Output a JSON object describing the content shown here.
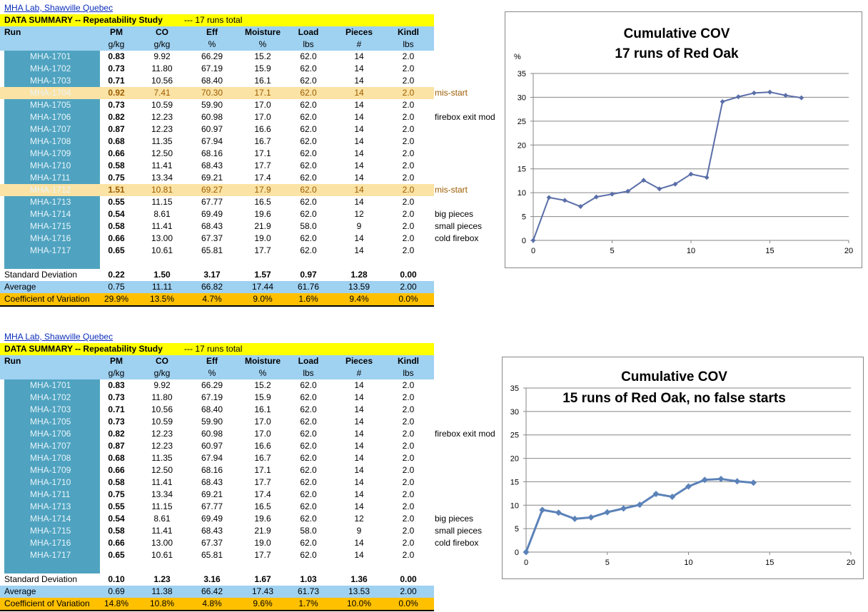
{
  "colors": {
    "title_bar": "#ffff00",
    "header": "#9fd1f1",
    "run_column": "#4fa3c0",
    "highlight": "#fbe3a5",
    "cov_row": "#ffc000",
    "series": "#5a6ea8",
    "series2": "#5b82b8"
  },
  "tables": [
    {
      "link": "MHA Lab, Shawville Quebec",
      "title": "DATA SUMMARY -- Repeatability Study",
      "title_note": "--- 17 runs total",
      "headers": [
        "Run",
        "PM",
        "CO",
        "Eff",
        "Moisture",
        "Load",
        "Pieces",
        "Kindl"
      ],
      "units": [
        "",
        "g/kg",
        "g/kg",
        "%",
        "%",
        "lbs",
        "#",
        "lbs"
      ],
      "rows": [
        {
          "run": "MHA-1701",
          "pm": "0.83",
          "co": "9.92",
          "eff": "66.29",
          "moist": "15.2",
          "load": "62.0",
          "pieces": "14",
          "kindl": "2.0",
          "note": ""
        },
        {
          "run": "MHA-1702",
          "pm": "0.73",
          "co": "11.80",
          "eff": "67.19",
          "moist": "15.9",
          "load": "62.0",
          "pieces": "14",
          "kindl": "2.0",
          "note": ""
        },
        {
          "run": "MHA-1703",
          "pm": "0.71",
          "co": "10.56",
          "eff": "68.40",
          "moist": "16.1",
          "load": "62.0",
          "pieces": "14",
          "kindl": "2.0",
          "note": ""
        },
        {
          "run": "MHA-1704",
          "pm": "0.92",
          "co": "7.41",
          "eff": "70.30",
          "moist": "17.1",
          "load": "62.0",
          "pieces": "14",
          "kindl": "2.0",
          "note": "mis-start",
          "hl": true
        },
        {
          "run": "MHA-1705",
          "pm": "0.73",
          "co": "10.59",
          "eff": "59.90",
          "moist": "17.0",
          "load": "62.0",
          "pieces": "14",
          "kindl": "2.0",
          "note": ""
        },
        {
          "run": "MHA-1706",
          "pm": "0.82",
          "co": "12.23",
          "eff": "60.98",
          "moist": "17.0",
          "load": "62.0",
          "pieces": "14",
          "kindl": "2.0",
          "note": "firebox exit mod"
        },
        {
          "run": "MHA-1707",
          "pm": "0.87",
          "co": "12.23",
          "eff": "60.97",
          "moist": "16.6",
          "load": "62.0",
          "pieces": "14",
          "kindl": "2.0",
          "note": ""
        },
        {
          "run": "MHA-1708",
          "pm": "0.68",
          "co": "11.35",
          "eff": "67.94",
          "moist": "16.7",
          "load": "62.0",
          "pieces": "14",
          "kindl": "2.0",
          "note": ""
        },
        {
          "run": "MHA-1709",
          "pm": "0.66",
          "co": "12.50",
          "eff": "68.16",
          "moist": "17.1",
          "load": "62.0",
          "pieces": "14",
          "kindl": "2.0",
          "note": ""
        },
        {
          "run": "MHA-1710",
          "pm": "0.58",
          "co": "11.41",
          "eff": "68.43",
          "moist": "17.7",
          "load": "62.0",
          "pieces": "14",
          "kindl": "2.0",
          "note": ""
        },
        {
          "run": "MHA-1711",
          "pm": "0.75",
          "co": "13.34",
          "eff": "69.21",
          "moist": "17.4",
          "load": "62.0",
          "pieces": "14",
          "kindl": "2.0",
          "note": ""
        },
        {
          "run": "MHA-1712",
          "pm": "1.51",
          "co": "10.81",
          "eff": "69.27",
          "moist": "17.9",
          "load": "62.0",
          "pieces": "14",
          "kindl": "2.0",
          "note": "mis-start",
          "hl": true
        },
        {
          "run": "MHA-1713",
          "pm": "0.55",
          "co": "11.15",
          "eff": "67.77",
          "moist": "16.5",
          "load": "62.0",
          "pieces": "14",
          "kindl": "2.0",
          "note": ""
        },
        {
          "run": "MHA-1714",
          "pm": "0.54",
          "co": "8.61",
          "eff": "69.49",
          "moist": "19.6",
          "load": "62.0",
          "pieces": "12",
          "kindl": "2.0",
          "note": "big pieces"
        },
        {
          "run": "MHA-1715",
          "pm": "0.58",
          "co": "11.41",
          "eff": "68.43",
          "moist": "21.9",
          "load": "58.0",
          "pieces": "9",
          "kindl": "2.0",
          "note": "small pieces"
        },
        {
          "run": "MHA-1716",
          "pm": "0.66",
          "co": "13.00",
          "eff": "67.37",
          "moist": "19.0",
          "load": "62.0",
          "pieces": "14",
          "kindl": "2.0",
          "note": "cold firebox"
        },
        {
          "run": "MHA-1717",
          "pm": "0.65",
          "co": "10.61",
          "eff": "65.81",
          "moist": "17.7",
          "load": "62.0",
          "pieces": "14",
          "kindl": "2.0",
          "note": ""
        }
      ],
      "stats": [
        {
          "label": "Standard Deviation",
          "values": [
            "0.22",
            "1.50",
            "3.17",
            "1.57",
            "0.97",
            "1.28",
            "0.00"
          ]
        },
        {
          "label": "Average",
          "values": [
            "0.75",
            "11.11",
            "66.82",
            "17.44",
            "61.76",
            "13.59",
            "2.00"
          ]
        },
        {
          "label": "Coefficient of Variation",
          "values": [
            "29.9%",
            "13.5%",
            "4.7%",
            "9.0%",
            "1.6%",
            "9.4%",
            "0.0%"
          ]
        }
      ]
    },
    {
      "link": "MHA Lab, Shawville Quebec",
      "title": "DATA SUMMARY -- Repeatability Study",
      "title_note": "--- 17 runs total",
      "headers": [
        "Run",
        "PM",
        "CO",
        "Eff",
        "Moisture",
        "Load",
        "Pieces",
        "Kindl"
      ],
      "units": [
        "",
        "g/kg",
        "g/kg",
        "%",
        "%",
        "lbs",
        "#",
        "lbs"
      ],
      "rows": [
        {
          "run": "MHA-1701",
          "pm": "0.83",
          "co": "9.92",
          "eff": "66.29",
          "moist": "15.2",
          "load": "62.0",
          "pieces": "14",
          "kindl": "2.0",
          "note": ""
        },
        {
          "run": "MHA-1702",
          "pm": "0.73",
          "co": "11.80",
          "eff": "67.19",
          "moist": "15.9",
          "load": "62.0",
          "pieces": "14",
          "kindl": "2.0",
          "note": ""
        },
        {
          "run": "MHA-1703",
          "pm": "0.71",
          "co": "10.56",
          "eff": "68.40",
          "moist": "16.1",
          "load": "62.0",
          "pieces": "14",
          "kindl": "2.0",
          "note": ""
        },
        {
          "run": "MHA-1705",
          "pm": "0.73",
          "co": "10.59",
          "eff": "59.90",
          "moist": "17.0",
          "load": "62.0",
          "pieces": "14",
          "kindl": "2.0",
          "note": ""
        },
        {
          "run": "MHA-1706",
          "pm": "0.82",
          "co": "12.23",
          "eff": "60.98",
          "moist": "17.0",
          "load": "62.0",
          "pieces": "14",
          "kindl": "2.0",
          "note": "firebox exit mod"
        },
        {
          "run": "MHA-1707",
          "pm": "0.87",
          "co": "12.23",
          "eff": "60.97",
          "moist": "16.6",
          "load": "62.0",
          "pieces": "14",
          "kindl": "2.0",
          "note": ""
        },
        {
          "run": "MHA-1708",
          "pm": "0.68",
          "co": "11.35",
          "eff": "67.94",
          "moist": "16.7",
          "load": "62.0",
          "pieces": "14",
          "kindl": "2.0",
          "note": ""
        },
        {
          "run": "MHA-1709",
          "pm": "0.66",
          "co": "12.50",
          "eff": "68.16",
          "moist": "17.1",
          "load": "62.0",
          "pieces": "14",
          "kindl": "2.0",
          "note": ""
        },
        {
          "run": "MHA-1710",
          "pm": "0.58",
          "co": "11.41",
          "eff": "68.43",
          "moist": "17.7",
          "load": "62.0",
          "pieces": "14",
          "kindl": "2.0",
          "note": ""
        },
        {
          "run": "MHA-1711",
          "pm": "0.75",
          "co": "13.34",
          "eff": "69.21",
          "moist": "17.4",
          "load": "62.0",
          "pieces": "14",
          "kindl": "2.0",
          "note": ""
        },
        {
          "run": "MHA-1713",
          "pm": "0.55",
          "co": "11.15",
          "eff": "67.77",
          "moist": "16.5",
          "load": "62.0",
          "pieces": "14",
          "kindl": "2.0",
          "note": ""
        },
        {
          "run": "MHA-1714",
          "pm": "0.54",
          "co": "8.61",
          "eff": "69.49",
          "moist": "19.6",
          "load": "62.0",
          "pieces": "12",
          "kindl": "2.0",
          "note": "big pieces"
        },
        {
          "run": "MHA-1715",
          "pm": "0.58",
          "co": "11.41",
          "eff": "68.43",
          "moist": "21.9",
          "load": "58.0",
          "pieces": "9",
          "kindl": "2.0",
          "note": "small pieces"
        },
        {
          "run": "MHA-1716",
          "pm": "0.66",
          "co": "13.00",
          "eff": "67.37",
          "moist": "19.0",
          "load": "62.0",
          "pieces": "14",
          "kindl": "2.0",
          "note": "cold firebox"
        },
        {
          "run": "MHA-1717",
          "pm": "0.65",
          "co": "10.61",
          "eff": "65.81",
          "moist": "17.7",
          "load": "62.0",
          "pieces": "14",
          "kindl": "2.0",
          "note": ""
        }
      ],
      "stats": [
        {
          "label": "Standard Deviation",
          "values": [
            "0.10",
            "1.23",
            "3.16",
            "1.67",
            "1.03",
            "1.36",
            "0.00"
          ]
        },
        {
          "label": "Average",
          "values": [
            "0.69",
            "11.38",
            "66.42",
            "17.43",
            "61.73",
            "13.53",
            "2.00"
          ]
        },
        {
          "label": "Coefficient of Variation",
          "values": [
            "14.8%",
            "10.8%",
            "4.8%",
            "9.6%",
            "1.7%",
            "10.0%",
            "0.0%"
          ]
        }
      ]
    }
  ],
  "chart_data": [
    {
      "type": "line",
      "title": "Cumulative COV",
      "subtitle": "17 runs of Red Oak",
      "ylabel": "%",
      "xlabel": "",
      "x": [
        0,
        1,
        2,
        3,
        4,
        5,
        6,
        7,
        8,
        9,
        10,
        11,
        12,
        13,
        14,
        15,
        16,
        17
      ],
      "series": [
        {
          "values": [
            0,
            9.0,
            8.4,
            7.1,
            9.1,
            9.7,
            10.3,
            12.6,
            10.8,
            11.8,
            13.9,
            13.2,
            29.1,
            30.1,
            30.9,
            31.1,
            30.4,
            29.9
          ]
        }
      ],
      "xlim": [
        0,
        20
      ],
      "ylim": [
        0,
        35
      ],
      "xticks": [
        0,
        5,
        10,
        15,
        20
      ],
      "yticks": [
        0,
        5,
        10,
        15,
        20,
        25,
        30,
        35
      ],
      "grid": "horizontal"
    },
    {
      "type": "line",
      "title": "Cumulative COV",
      "subtitle": "15 runs of Red Oak, no false starts",
      "ylabel": "",
      "xlabel": "",
      "x": [
        0,
        1,
        2,
        3,
        4,
        5,
        6,
        7,
        8,
        9,
        10,
        11,
        12,
        13,
        14
      ],
      "series": [
        {
          "values": [
            0,
            9.0,
            8.4,
            7.1,
            7.4,
            8.5,
            9.3,
            10.1,
            12.4,
            11.8,
            14.0,
            15.4,
            15.6,
            15.1,
            14.8
          ]
        }
      ],
      "xlim": [
        0,
        20
      ],
      "ylim": [
        0,
        35
      ],
      "xticks": [
        0,
        5,
        10,
        15,
        20
      ],
      "yticks": [
        0,
        5,
        10,
        15,
        20,
        25,
        30,
        35
      ],
      "grid": "horizontal"
    }
  ]
}
